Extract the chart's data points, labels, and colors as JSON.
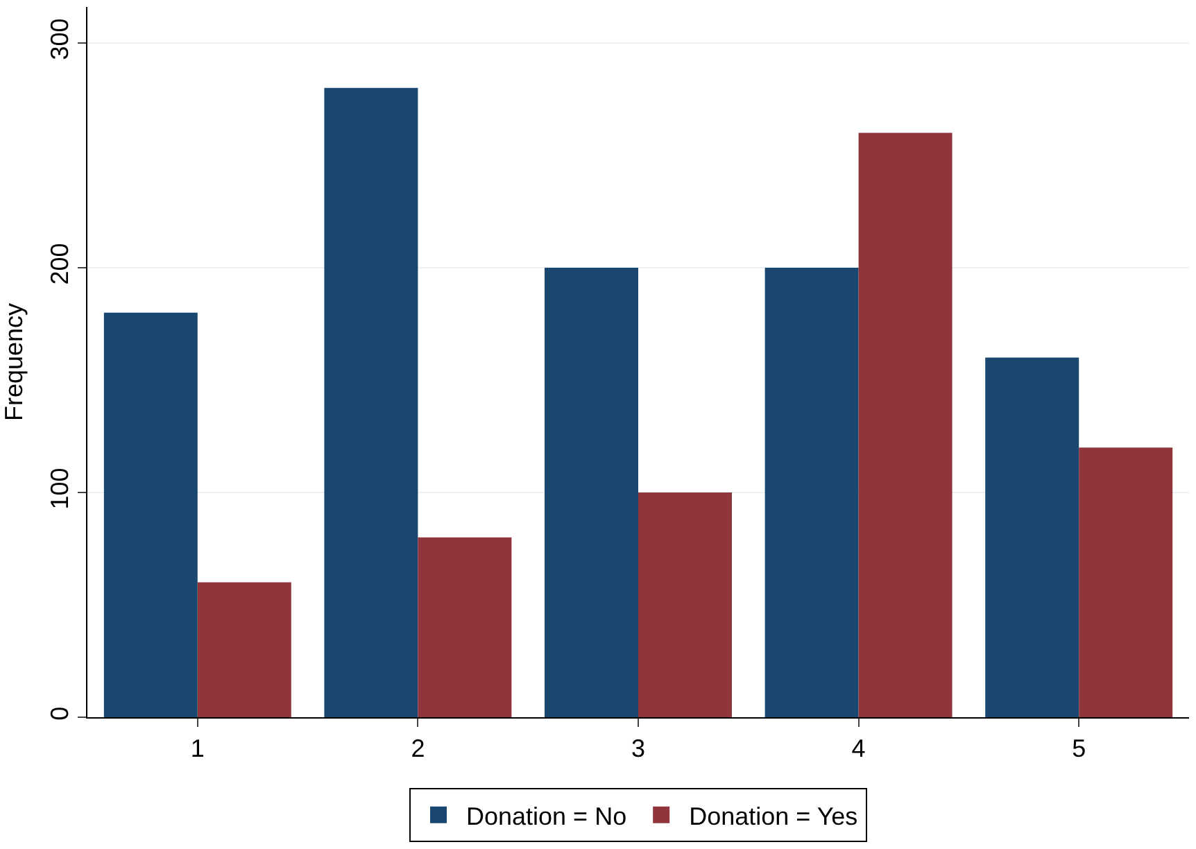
{
  "chart_data": {
    "type": "bar",
    "ylabel": "Frequency",
    "categories": [
      "1",
      "2",
      "3",
      "4",
      "5"
    ],
    "series": [
      {
        "name": "Donation = No",
        "color": "#1a476f",
        "values": [
          180,
          280,
          200,
          200,
          160
        ]
      },
      {
        "name": "Donation = Yes",
        "color": "#90353b",
        "values": [
          60,
          80,
          100,
          260,
          120
        ]
      }
    ],
    "ylim": [
      0,
      316
    ],
    "yticks": [
      0,
      100,
      200,
      300
    ],
    "grid": "y",
    "legend": "bottom"
  }
}
